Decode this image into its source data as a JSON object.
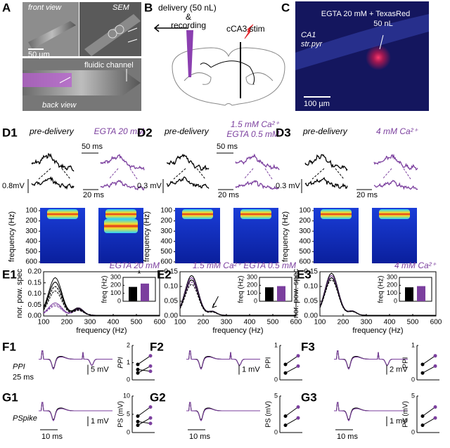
{
  "A": {
    "label": "A",
    "front": "front view",
    "sem": "SEM",
    "scale": "50 µm",
    "channel": "fluidic channel",
    "back": "back view"
  },
  "B": {
    "label": "B",
    "delivery": "delivery (50 nL)",
    "amp": "&",
    "recording": "recording",
    "stim": "cCA3 stim"
  },
  "C": {
    "label": "C",
    "line1": "EGTA 20 mM + TexasRed",
    "line2": "50 nL",
    "region": "CA1",
    "layer": "str.pyr",
    "scale": "100 µm"
  },
  "D": [
    {
      "label": "D1",
      "pre": "pre-delivery",
      "condition": [
        "EGTA 20 mM"
      ],
      "time_top": "50 ms",
      "amp": "0.8mV",
      "time_bottom": "20 ms",
      "spec_ylabel": "frequency (Hz)",
      "spec_yticks": [
        100,
        200,
        300,
        400,
        500,
        600
      ]
    },
    {
      "label": "D2",
      "pre": "pre-delivery",
      "condition": [
        "1.5 mM Ca²⁺",
        "EGTA 0.5 mM"
      ],
      "time_top": "50 ms",
      "amp": "0.3 mV",
      "time_bottom": "20 ms",
      "spec_ylabel": "frequency (Hz)",
      "spec_yticks": [
        100,
        200,
        300,
        400,
        500,
        600
      ]
    },
    {
      "label": "D3",
      "pre": "pre-delivery",
      "condition": [
        "4 mM Ca²⁺"
      ],
      "amp": "0.3 mV",
      "time_bottom": "20 ms",
      "spec_ylabel": "frequency (Hz)",
      "spec_yticks": [
        100,
        200,
        300,
        400,
        500,
        600
      ]
    }
  ],
  "E": [
    {
      "label": "E1",
      "condition": "EGTA 20 mM",
      "ylabel": "nor. pow. spec",
      "ylim": [
        0,
        0.2
      ],
      "yticks": [
        {
          "value": 0,
          "label": "0.00"
        },
        {
          "value": 0.05,
          "label": "0.05"
        },
        {
          "value": 0.1,
          "label": "0.10"
        },
        {
          "value": 0.15,
          "label": "0.15"
        },
        {
          "value": 0.2,
          "label": "0.20"
        }
      ],
      "xlim": [
        100,
        600
      ],
      "xticks": [
        100,
        200,
        300,
        400,
        500,
        600
      ],
      "xlabel": "frequency (Hz)",
      "inset": {
        "ylabel": "freq (Hz)",
        "ylim": [
          0,
          300
        ],
        "yticks": [
          0,
          100,
          200,
          300
        ],
        "values": [
          180,
          222
        ],
        "colors": [
          "#000000",
          "#7b3f9e"
        ],
        "star": "*"
      }
    },
    {
      "label": "E2",
      "condition": "1.5 mM Ca²⁺ EGTA 0.5 mM",
      "ylim": [
        0,
        0.15
      ],
      "yticks": [
        {
          "value": 0,
          "label": "0.00"
        },
        {
          "value": 0.05,
          "label": "0.05"
        },
        {
          "value": 0.1,
          "label": "0.10"
        },
        {
          "value": 0.15,
          "label": "0.15"
        }
      ],
      "xlim": [
        100,
        600
      ],
      "xticks": [
        100,
        200,
        300,
        400,
        500,
        600
      ],
      "xlabel": "frequency (Hz)",
      "inset": {
        "ylabel": "freq (Hz)",
        "ylim": [
          0,
          300
        ],
        "yticks": [
          0,
          100,
          200,
          300
        ],
        "values": [
          175,
          190
        ],
        "colors": [
          "#000000",
          "#7b3f9e"
        ]
      }
    },
    {
      "label": "E3",
      "condition": "4 mM Ca²⁺",
      "ylabel": "nor. pow. spec",
      "ylim": [
        0,
        0.15
      ],
      "yticks": [
        {
          "value": 0,
          "label": "0.00"
        },
        {
          "value": 0.05,
          "label": "0.05"
        },
        {
          "value": 0.1,
          "label": "0.10"
        },
        {
          "value": 0.15,
          "label": "0.15"
        }
      ],
      "xlim": [
        100,
        600
      ],
      "xticks": [
        100,
        200,
        300,
        400,
        500,
        600
      ],
      "xlabel": "frequency (Hz)",
      "inset": {
        "ylabel": "freq (Hz)",
        "ylim": [
          0,
          300
        ],
        "yticks": [
          0,
          100,
          200,
          300
        ],
        "values": [
          175,
          190
        ],
        "colors": [
          "#000000",
          "#7b3f9e"
        ]
      }
    }
  ],
  "F": [
    {
      "label": "F1",
      "name": "PPI",
      "time": "25 ms",
      "amp": "5 mV",
      "inset_ylabel": "PPI",
      "inset_yticks": [
        0,
        1,
        2
      ]
    },
    {
      "label": "F2",
      "amp": "1 mV",
      "inset_ylabel": "PPI",
      "inset_yticks": [
        0,
        1
      ]
    },
    {
      "label": "F3",
      "amp": "2 mV",
      "inset_ylabel": "PPI",
      "inset_yticks": [
        0,
        1
      ]
    }
  ],
  "G": [
    {
      "label": "G1",
      "name": "PSpike",
      "time": "10 ms",
      "amp": "1 mV",
      "inset_ylabel": "PS (mV)",
      "inset_yticks": [
        0,
        5,
        10
      ]
    },
    {
      "label": "G2",
      "time": "10 ms",
      "inset_ylabel": "PS (mV)",
      "inset_yticks": [
        0,
        5
      ]
    },
    {
      "label": "G3",
      "time": "10 ms",
      "amp": "1 mV",
      "inset_ylabel": "PS (mV)",
      "inset_yticks": [
        0,
        5
      ]
    }
  ]
}
